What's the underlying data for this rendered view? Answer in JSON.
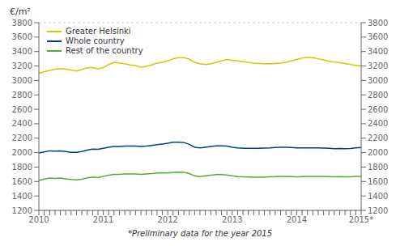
{
  "chart_data": {
    "type": "line",
    "ylabel": "€/m²",
    "annotations": [
      "*Preliminary data for the year 2015"
    ],
    "categories": [
      "2010",
      null,
      null,
      null,
      null,
      null,
      null,
      null,
      null,
      null,
      null,
      null,
      "2011",
      null,
      null,
      null,
      null,
      null,
      null,
      null,
      null,
      null,
      null,
      null,
      "2012",
      null,
      null,
      null,
      null,
      null,
      null,
      null,
      null,
      null,
      null,
      null,
      "2013",
      null,
      null,
      null,
      null,
      null,
      null,
      null,
      null,
      null,
      null,
      null,
      "2014",
      null,
      null,
      null,
      null,
      null,
      null,
      null,
      null,
      null,
      null,
      null,
      "2015*"
    ],
    "series": [
      {
        "name": "Greater Helsinki",
        "color": "#d4c800",
        "values": [
          3100,
          3120,
          3140,
          3155,
          3165,
          3155,
          3145,
          3130,
          3150,
          3175,
          3180,
          3160,
          3180,
          3220,
          3250,
          3240,
          3230,
          3215,
          3205,
          3180,
          3195,
          3215,
          3240,
          3250,
          3270,
          3300,
          3315,
          3315,
          3295,
          3250,
          3230,
          3220,
          3230,
          3250,
          3270,
          3290,
          3280,
          3270,
          3260,
          3250,
          3240,
          3235,
          3230,
          3230,
          3235,
          3240,
          3250,
          3270,
          3290,
          3310,
          3320,
          3315,
          3300,
          3285,
          3265,
          3255,
          3245,
          3235,
          3220,
          3210,
          3200
        ]
      },
      {
        "name": "Whole country",
        "color": "#003f87",
        "values": [
          1995,
          2010,
          2025,
          2020,
          2025,
          2015,
          2005,
          2005,
          2015,
          2035,
          2050,
          2045,
          2060,
          2075,
          2085,
          2085,
          2090,
          2090,
          2090,
          2085,
          2090,
          2100,
          2110,
          2120,
          2130,
          2145,
          2145,
          2140,
          2115,
          2075,
          2065,
          2075,
          2085,
          2095,
          2095,
          2090,
          2075,
          2065,
          2060,
          2060,
          2060,
          2060,
          2062,
          2065,
          2070,
          2075,
          2075,
          2070,
          2065,
          2065,
          2065,
          2065,
          2065,
          2062,
          2060,
          2055,
          2058,
          2055,
          2058,
          2065,
          2070
        ]
      },
      {
        "name": "Rest of the country",
        "color": "#5aaa32",
        "values": [
          1615,
          1635,
          1648,
          1642,
          1648,
          1638,
          1628,
          1622,
          1632,
          1652,
          1662,
          1655,
          1672,
          1688,
          1698,
          1698,
          1705,
          1705,
          1705,
          1700,
          1705,
          1710,
          1718,
          1722,
          1718,
          1728,
          1730,
          1728,
          1710,
          1678,
          1668,
          1678,
          1688,
          1695,
          1695,
          1690,
          1678,
          1668,
          1665,
          1662,
          1660,
          1660,
          1662,
          1665,
          1668,
          1672,
          1672,
          1668,
          1665,
          1668,
          1672,
          1672,
          1672,
          1670,
          1668,
          1665,
          1668,
          1665,
          1665,
          1672,
          1672
        ]
      }
    ],
    "ylim": [
      1200,
      3800
    ],
    "yticks": [
      1200,
      1400,
      1600,
      1800,
      2000,
      2200,
      2400,
      2600,
      2800,
      3000,
      3200,
      3400,
      3600,
      3800
    ],
    "grid": true,
    "legend": "upper left"
  }
}
